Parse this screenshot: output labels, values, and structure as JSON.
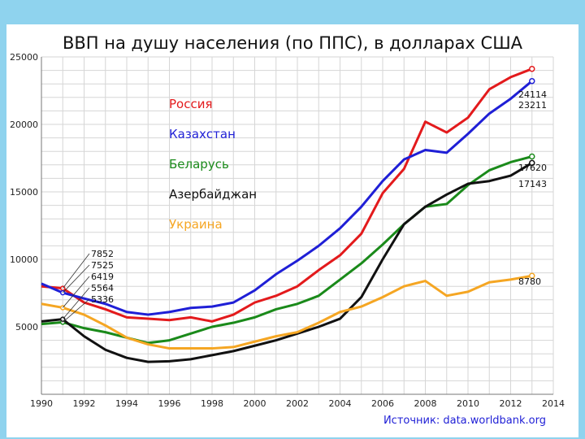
{
  "chart_data": {
    "type": "line",
    "title": "ВВП на душу населения (по ППС), в долларах США",
    "source": "Источник: data.worldbank.org",
    "xlim": [
      1990,
      2014
    ],
    "ylim": [
      0,
      25000
    ],
    "x_ticks": [
      "1990",
      "1992",
      "1994",
      "1996",
      "1998",
      "2000",
      "2002",
      "2004",
      "2006",
      "2008",
      "2010",
      "2012",
      "2014"
    ],
    "y_ticks": [
      "5000",
      "10000",
      "15000",
      "20000",
      "25000"
    ],
    "grid": true,
    "legend_position": "top-left",
    "x": [
      1990,
      1991,
      1992,
      1993,
      1994,
      1995,
      1996,
      1997,
      1998,
      1999,
      2000,
      2001,
      2002,
      2003,
      2004,
      2005,
      2006,
      2007,
      2008,
      2009,
      2010,
      2011,
      2012,
      2013
    ],
    "series": [
      {
        "name": "Россия",
        "color": "#e31a1c",
        "values": [
          8000,
          7852,
          6800,
          6300,
          5700,
          5600,
          5500,
          5700,
          5400,
          5900,
          6800,
          7300,
          8000,
          9200,
          10300,
          11900,
          14900,
          16700,
          20200,
          19400,
          20500,
          22600,
          23500,
          24114
        ],
        "end_label": "24114"
      },
      {
        "name": "Казахстан",
        "color": "#1f1fd6",
        "values": [
          8200,
          7525,
          7100,
          6700,
          6100,
          5900,
          6100,
          6400,
          6500,
          6800,
          7700,
          8900,
          9900,
          11000,
          12300,
          13900,
          15800,
          17400,
          18100,
          17900,
          19300,
          20800,
          21900,
          23211
        ],
        "end_label": "23211"
      },
      {
        "name": "Беларусь",
        "color": "#1a8a1a",
        "values": [
          5200,
          5336,
          4900,
          4600,
          4200,
          3800,
          4000,
          4500,
          5000,
          5300,
          5700,
          6300,
          6700,
          7300,
          8500,
          9700,
          11100,
          12600,
          13900,
          14100,
          15500,
          16600,
          17200,
          17620
        ],
        "end_label": "17620"
      },
      {
        "name": "Азербайджан",
        "color": "#111111",
        "values": [
          5400,
          5564,
          4300,
          3300,
          2700,
          2400,
          2450,
          2600,
          2900,
          3200,
          3600,
          4000,
          4500,
          5000,
          5600,
          7200,
          10000,
          12600,
          13900,
          14800,
          15600,
          15800,
          16200,
          17143
        ],
        "end_label": "17143"
      },
      {
        "name": "Украина",
        "color": "#f5a623",
        "values": [
          6700,
          6419,
          5900,
          5100,
          4200,
          3700,
          3400,
          3400,
          3400,
          3500,
          3900,
          4300,
          4600,
          5300,
          6100,
          6500,
          7200,
          8000,
          8400,
          7300,
          7600,
          8300,
          8500,
          8780
        ],
        "end_label": "8780"
      }
    ],
    "annotations_1991": [
      "7852",
      "7525",
      "6419",
      "5564",
      "5336"
    ]
  }
}
